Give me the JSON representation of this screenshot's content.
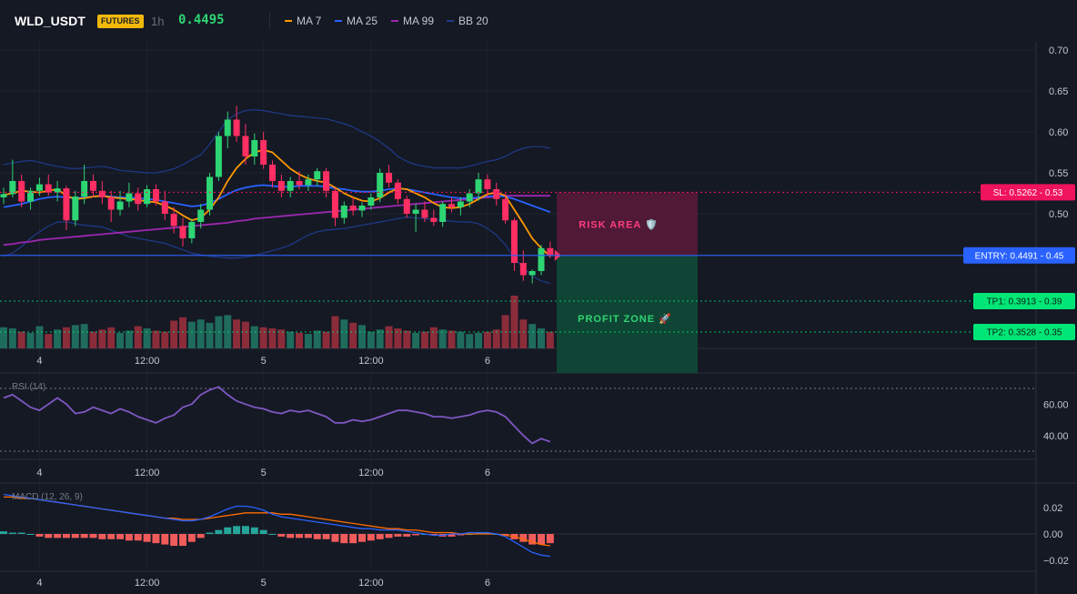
{
  "header": {
    "symbol": "WLD_USDT",
    "badge": "FUTURES",
    "interval": "1h",
    "last_price": "0.4495",
    "legend": [
      {
        "label": "MA 7",
        "color": "#ff9800"
      },
      {
        "label": "MA 25",
        "color": "#2962ff"
      },
      {
        "label": "MA 99",
        "color": "#9c27b0"
      },
      {
        "label": "BB 20",
        "color": "#1e3a8a"
      }
    ]
  },
  "colors": {
    "up": "#2ed573",
    "down": "#ff2e63",
    "vol_up": "#1f6b5c",
    "vol_down": "#8b2c3a",
    "ma7": "#ff9800",
    "ma25": "#2962ff",
    "ma99": "#9c27b0",
    "bb": "#1e3a8a",
    "rsi": "#7e57c2",
    "macd": "#2962ff",
    "signal": "#ff6d00",
    "hist_up": "#26a69a",
    "hist_down": "#f05b5b",
    "risk": "#5a1a3a",
    "profit": "#0e4a36",
    "sl_tag": "#f0135e",
    "entry_tag": "#2962ff",
    "tp_tag": "#00e676"
  },
  "chart_data": [
    {
      "type": "candlestick",
      "name": "price",
      "ylim": [
        0.42,
        0.7
      ],
      "yticks": [
        "0.70",
        "0.65",
        "0.60",
        "0.55",
        "0.50",
        "0.45"
      ],
      "time_labels": [
        "4",
        "12:00",
        "5",
        "12:00",
        "6"
      ],
      "candles": [
        [
          0.52,
          0.532,
          0.512,
          0.524
        ],
        [
          0.524,
          0.566,
          0.52,
          0.54
        ],
        [
          0.54,
          0.548,
          0.508,
          0.515
        ],
        [
          0.515,
          0.532,
          0.505,
          0.528
        ],
        [
          0.528,
          0.544,
          0.522,
          0.536
        ],
        [
          0.536,
          0.548,
          0.522,
          0.526
        ],
        [
          0.526,
          0.54,
          0.515,
          0.531
        ],
        [
          0.531,
          0.534,
          0.48,
          0.492
        ],
        [
          0.492,
          0.528,
          0.485,
          0.521
        ],
        [
          0.521,
          0.56,
          0.512,
          0.54
        ],
        [
          0.54,
          0.548,
          0.52,
          0.528
        ],
        [
          0.528,
          0.54,
          0.512,
          0.52
        ],
        [
          0.52,
          0.528,
          0.49,
          0.505
        ],
        [
          0.505,
          0.528,
          0.498,
          0.515
        ],
        [
          0.515,
          0.538,
          0.508,
          0.525
        ],
        [
          0.525,
          0.532,
          0.504,
          0.512
        ],
        [
          0.512,
          0.535,
          0.508,
          0.53
        ],
        [
          0.53,
          0.536,
          0.51,
          0.515
        ],
        [
          0.515,
          0.528,
          0.492,
          0.5
        ],
        [
          0.5,
          0.508,
          0.476,
          0.485
        ],
        [
          0.485,
          0.495,
          0.46,
          0.47
        ],
        [
          0.47,
          0.494,
          0.464,
          0.49
        ],
        [
          0.49,
          0.512,
          0.482,
          0.505
        ],
        [
          0.505,
          0.55,
          0.498,
          0.545
        ],
        [
          0.545,
          0.6,
          0.54,
          0.595
        ],
        [
          0.595,
          0.625,
          0.58,
          0.615
        ],
        [
          0.615,
          0.632,
          0.588,
          0.595
        ],
        [
          0.595,
          0.61,
          0.56,
          0.57
        ],
        [
          0.57,
          0.598,
          0.56,
          0.59
        ],
        [
          0.59,
          0.6,
          0.555,
          0.56
        ],
        [
          0.56,
          0.565,
          0.532,
          0.54
        ],
        [
          0.54,
          0.548,
          0.52,
          0.528
        ],
        [
          0.528,
          0.545,
          0.52,
          0.54
        ],
        [
          0.54,
          0.552,
          0.53,
          0.535
        ],
        [
          0.535,
          0.548,
          0.528,
          0.542
        ],
        [
          0.542,
          0.556,
          0.534,
          0.552
        ],
        [
          0.552,
          0.556,
          0.52,
          0.528
        ],
        [
          0.528,
          0.532,
          0.485,
          0.495
        ],
        [
          0.495,
          0.515,
          0.488,
          0.51
        ],
        [
          0.51,
          0.52,
          0.498,
          0.504
        ],
        [
          0.504,
          0.514,
          0.496,
          0.51
        ],
        [
          0.51,
          0.525,
          0.505,
          0.52
        ],
        [
          0.52,
          0.555,
          0.514,
          0.55
        ],
        [
          0.55,
          0.56,
          0.532,
          0.538
        ],
        [
          0.538,
          0.542,
          0.512,
          0.518
        ],
        [
          0.518,
          0.522,
          0.495,
          0.5
        ],
        [
          0.5,
          0.512,
          0.478,
          0.505
        ],
        [
          0.505,
          0.515,
          0.49,
          0.495
        ],
        [
          0.495,
          0.505,
          0.485,
          0.49
        ],
        [
          0.49,
          0.515,
          0.484,
          0.512
        ],
        [
          0.512,
          0.52,
          0.502,
          0.508
        ],
        [
          0.508,
          0.52,
          0.498,
          0.515
        ],
        [
          0.515,
          0.53,
          0.508,
          0.525
        ],
        [
          0.525,
          0.55,
          0.516,
          0.542
        ],
        [
          0.542,
          0.548,
          0.52,
          0.53
        ],
        [
          0.53,
          0.538,
          0.51,
          0.518
        ],
        [
          0.518,
          0.525,
          0.488,
          0.492
        ],
        [
          0.492,
          0.495,
          0.43,
          0.44
        ],
        [
          0.44,
          0.455,
          0.418,
          0.425
        ],
        [
          0.425,
          0.432,
          0.415,
          0.43
        ],
        [
          0.43,
          0.462,
          0.425,
          0.458
        ],
        [
          0.458,
          0.466,
          0.446,
          0.449
        ]
      ],
      "volume": [
        38,
        36,
        30,
        28,
        40,
        26,
        34,
        38,
        42,
        44,
        30,
        34,
        38,
        28,
        32,
        40,
        36,
        32,
        30,
        50,
        56,
        48,
        52,
        46,
        58,
        60,
        52,
        48,
        40,
        38,
        36,
        34,
        30,
        28,
        26,
        32,
        30,
        58,
        52,
        46,
        42,
        30,
        34,
        40,
        36,
        32,
        28,
        30,
        38,
        34,
        32,
        30,
        26,
        28,
        30,
        34,
        60,
        95,
        52,
        44,
        36,
        30
      ],
      "ma7": [
        0.523,
        0.525,
        0.528,
        0.527,
        0.526,
        0.528,
        0.53,
        0.522,
        0.518,
        0.519,
        0.521,
        0.522,
        0.52,
        0.519,
        0.518,
        0.517,
        0.515,
        0.514,
        0.51,
        0.505,
        0.498,
        0.492,
        0.495,
        0.505,
        0.52,
        0.54,
        0.556,
        0.567,
        0.575,
        0.578,
        0.575,
        0.565,
        0.555,
        0.548,
        0.543,
        0.54,
        0.538,
        0.532,
        0.525,
        0.52,
        0.516,
        0.515,
        0.519,
        0.526,
        0.531,
        0.53,
        0.525,
        0.52,
        0.513,
        0.508,
        0.507,
        0.508,
        0.512,
        0.518,
        0.524,
        0.526,
        0.522,
        0.505,
        0.488,
        0.47,
        0.458,
        0.448
      ],
      "ma25": [
        0.508,
        0.51,
        0.512,
        0.515,
        0.518,
        0.52,
        0.521,
        0.52,
        0.519,
        0.52,
        0.521,
        0.522,
        0.521,
        0.52,
        0.52,
        0.519,
        0.518,
        0.517,
        0.515,
        0.513,
        0.511,
        0.509,
        0.51,
        0.513,
        0.518,
        0.524,
        0.529,
        0.532,
        0.534,
        0.535,
        0.534,
        0.533,
        0.533,
        0.534,
        0.534,
        0.534,
        0.533,
        0.531,
        0.53,
        0.528,
        0.527,
        0.527,
        0.528,
        0.53,
        0.531,
        0.53,
        0.528,
        0.526,
        0.524,
        0.522,
        0.52,
        0.519,
        0.519,
        0.52,
        0.521,
        0.522,
        0.521,
        0.518,
        0.514,
        0.51,
        0.506,
        0.502
      ],
      "ma99": [
        0.462,
        0.463,
        0.465,
        0.466,
        0.468,
        0.469,
        0.47,
        0.471,
        0.472,
        0.473,
        0.474,
        0.475,
        0.476,
        0.477,
        0.478,
        0.479,
        0.48,
        0.481,
        0.482,
        0.483,
        0.484,
        0.485,
        0.486,
        0.487,
        0.488,
        0.489,
        0.491,
        0.492,
        0.494,
        0.495,
        0.496,
        0.497,
        0.498,
        0.499,
        0.5,
        0.501,
        0.502,
        0.503,
        0.504,
        0.505,
        0.506,
        0.507,
        0.508,
        0.509,
        0.51,
        0.511,
        0.512,
        0.513,
        0.514,
        0.515,
        0.516,
        0.517,
        0.518,
        0.519,
        0.52,
        0.521,
        0.522,
        0.522,
        0.522,
        0.522,
        0.522,
        0.522
      ],
      "bb_upper": [
        0.56,
        0.562,
        0.564,
        0.565,
        0.563,
        0.56,
        0.558,
        0.556,
        0.555,
        0.556,
        0.557,
        0.558,
        0.556,
        0.553,
        0.552,
        0.551,
        0.55,
        0.55,
        0.552,
        0.555,
        0.56,
        0.566,
        0.572,
        0.585,
        0.6,
        0.615,
        0.622,
        0.626,
        0.627,
        0.626,
        0.624,
        0.622,
        0.62,
        0.619,
        0.618,
        0.617,
        0.616,
        0.613,
        0.61,
        0.606,
        0.6,
        0.595,
        0.588,
        0.58,
        0.57,
        0.564,
        0.56,
        0.558,
        0.556,
        0.556,
        0.556,
        0.556,
        0.558,
        0.561,
        0.564,
        0.566,
        0.57,
        0.576,
        0.58,
        0.582,
        0.582,
        0.58
      ],
      "bb_lower": [
        0.448,
        0.452,
        0.46,
        0.47,
        0.478,
        0.485,
        0.49,
        0.49,
        0.488,
        0.486,
        0.485,
        0.484,
        0.48,
        0.476,
        0.472,
        0.47,
        0.468,
        0.466,
        0.464,
        0.46,
        0.456,
        0.452,
        0.45,
        0.448,
        0.447,
        0.446,
        0.446,
        0.447,
        0.449,
        0.452,
        0.455,
        0.458,
        0.462,
        0.468,
        0.474,
        0.478,
        0.48,
        0.481,
        0.482,
        0.484,
        0.486,
        0.488,
        0.49,
        0.492,
        0.494,
        0.496,
        0.495,
        0.494,
        0.493,
        0.492,
        0.491,
        0.49,
        0.49,
        0.488,
        0.482,
        0.474,
        0.462,
        0.446,
        0.434,
        0.424,
        0.418,
        0.415
      ],
      "levels": {
        "sl": {
          "value": 0.5262,
          "label": "SL: 0.5262 - 0.53"
        },
        "entry": {
          "value": 0.4491,
          "label": "ENTRY: 0.4491 - 0.45"
        },
        "tp1": {
          "value": 0.3913,
          "label": "TP1: 0.3913 - 0.39"
        },
        "tp2": {
          "value": 0.3528,
          "label": "TP2: 0.3528 - 0.35"
        }
      },
      "zones": {
        "risk_label": "RISK AREA 🛡️",
        "profit_label": "PROFIT ZONE 🚀"
      }
    },
    {
      "type": "line",
      "name": "RSI (14)",
      "ylim": [
        30,
        70
      ],
      "yticks": [
        "60.00",
        "40.00"
      ],
      "levels": [
        70,
        30
      ],
      "time_labels": [
        "4",
        "12:00",
        "5",
        "12:00",
        "6"
      ],
      "values": [
        64,
        66,
        62,
        58,
        56,
        60,
        64,
        60,
        54,
        55,
        58,
        56,
        54,
        57,
        55,
        52,
        50,
        48,
        51,
        53,
        58,
        60,
        66,
        69,
        71,
        66,
        62,
        60,
        58,
        57,
        55,
        54,
        56,
        55,
        56,
        54,
        52,
        48,
        48,
        50,
        49,
        50,
        52,
        54,
        56,
        56,
        55,
        54,
        52,
        52,
        51,
        52,
        53,
        55,
        56,
        55,
        52,
        46,
        40,
        35,
        38,
        36
      ]
    },
    {
      "type": "bar+line",
      "name": "MACD (12, 26, 9)",
      "ylim": [
        -0.025,
        0.03
      ],
      "yticks": [
        "0.02",
        "0.00",
        "−0.02"
      ],
      "time_labels": [
        "4",
        "12:00",
        "5",
        "12:00",
        "6"
      ],
      "macd": [
        0.03,
        0.029,
        0.028,
        0.027,
        0.026,
        0.025,
        0.024,
        0.023,
        0.022,
        0.021,
        0.02,
        0.019,
        0.018,
        0.017,
        0.016,
        0.015,
        0.014,
        0.013,
        0.012,
        0.011,
        0.01,
        0.01,
        0.011,
        0.013,
        0.016,
        0.019,
        0.021,
        0.021,
        0.02,
        0.018,
        0.015,
        0.013,
        0.012,
        0.011,
        0.01,
        0.009,
        0.008,
        0.007,
        0.006,
        0.005,
        0.004,
        0.004,
        0.003,
        0.003,
        0.003,
        0.002,
        0.001,
        0.0,
        -0.001,
        -0.001,
        0.0,
        0.0,
        0.001,
        0.001,
        0.001,
        0.0,
        -0.002,
        -0.006,
        -0.01,
        -0.014,
        -0.016,
        -0.017
      ],
      "signal": [
        0.028,
        0.028,
        0.027,
        0.027,
        0.026,
        0.025,
        0.024,
        0.023,
        0.022,
        0.021,
        0.02,
        0.019,
        0.018,
        0.017,
        0.016,
        0.015,
        0.014,
        0.013,
        0.012,
        0.012,
        0.011,
        0.011,
        0.011,
        0.012,
        0.013,
        0.014,
        0.015,
        0.016,
        0.016,
        0.016,
        0.016,
        0.015,
        0.015,
        0.014,
        0.013,
        0.012,
        0.011,
        0.01,
        0.009,
        0.008,
        0.007,
        0.006,
        0.005,
        0.004,
        0.004,
        0.003,
        0.003,
        0.002,
        0.001,
        0.001,
        0.001,
        0.0,
        0.0,
        0.0,
        0.0,
        0.0,
        -0.001,
        -0.002,
        -0.004,
        -0.006,
        -0.008,
        -0.009
      ],
      "hist": [
        0.002,
        0.001,
        0.001,
        0.0,
        -0.002,
        -0.003,
        -0.003,
        -0.003,
        -0.003,
        -0.003,
        -0.003,
        -0.004,
        -0.004,
        -0.004,
        -0.005,
        -0.005,
        -0.006,
        -0.007,
        -0.008,
        -0.009,
        -0.009,
        -0.006,
        -0.003,
        0.001,
        0.003,
        0.005,
        0.006,
        0.006,
        0.005,
        0.003,
        0.0,
        -0.002,
        -0.003,
        -0.003,
        -0.003,
        -0.004,
        -0.004,
        -0.006,
        -0.007,
        -0.007,
        -0.006,
        -0.005,
        -0.004,
        -0.003,
        -0.002,
        -0.002,
        -0.001,
        0.0,
        -0.001,
        -0.002,
        -0.002,
        -0.001,
        0.0,
        0.001,
        0.001,
        0.0,
        -0.001,
        -0.004,
        -0.006,
        -0.008,
        -0.008,
        -0.007
      ]
    }
  ]
}
